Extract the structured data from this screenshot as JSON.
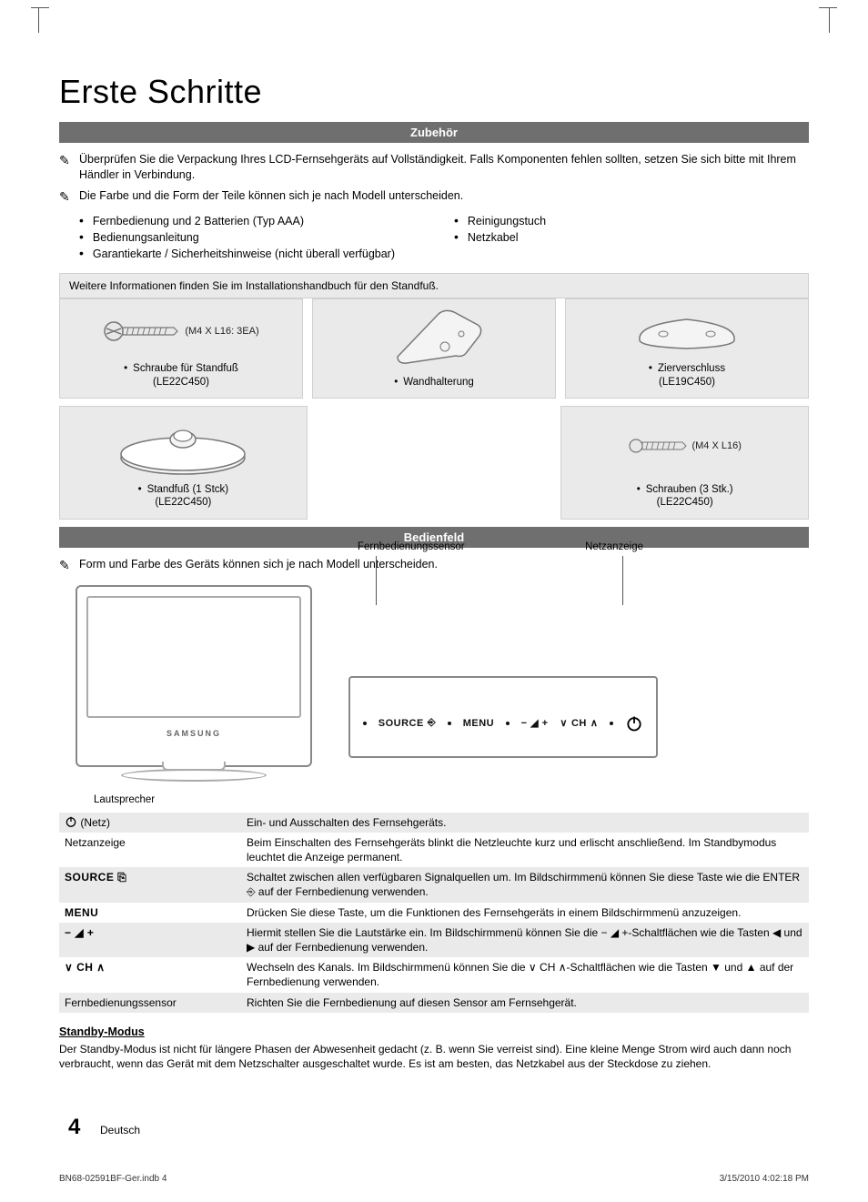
{
  "page": {
    "title": "Erste Schritte",
    "number": "4",
    "language": "Deutsch"
  },
  "footer": {
    "left": "BN68-02591BF-Ger.indb   4",
    "right": "3/15/2010   4:02:18 PM"
  },
  "sections": {
    "accessories": {
      "heading": "Zubehör",
      "note1": "Überprüfen Sie die Verpackung Ihres LCD-Fernsehgeräts auf Vollständigkeit. Falls Komponenten fehlen sollten, setzen Sie sich bitte mit Ihrem Händler in Verbindung.",
      "note2": "Die Farbe und die Form der Teile können sich je nach Modell unterscheiden.",
      "list_left": [
        "Fernbedienung und 2 Batterien (Typ AAA)",
        "Bedienungsanleitung",
        "Garantiekarte / Sicherheitshinweise (nicht überall verfügbar)"
      ],
      "list_right": [
        "Reinigungstuch",
        "Netzkabel"
      ],
      "stand_info": "Weitere Informationen finden Sie im Installationshandbuch für den Standfuß.",
      "parts_row1": [
        {
          "extra": "(M4 X L16: 3EA)",
          "label": "Schraube für Standfuß",
          "sub": "(LE22C450)"
        },
        {
          "extra": "",
          "label": "Wandhalterung",
          "sub": ""
        },
        {
          "extra": "",
          "label": "Zierverschluss",
          "sub": "(LE19C450)"
        }
      ],
      "parts_row2": [
        {
          "extra": "",
          "label": "Standfuß (1 Stck)",
          "sub": "(LE22C450)"
        },
        {
          "extra": "(M4 X L16)",
          "label": "Schrauben (3 Stk.)",
          "sub": "(LE22C450)"
        }
      ]
    },
    "controlpanel": {
      "heading": "Bedienfeld",
      "note": "Form und Farbe des Geräts können sich je nach Modell unterscheiden.",
      "tv_brand": "SAMSUNG",
      "speaker_label": "Lautsprecher",
      "sensor_label": "Fernbedienungssensor",
      "power_label": "Netzanzeige",
      "buttons": {
        "source": "SOURCE",
        "menu": "MENU",
        "ch": "CH"
      },
      "table": [
        {
          "key_icon": "power",
          "key": "(Netz)",
          "desc": "Ein- und Ausschalten des Fernsehgeräts."
        },
        {
          "key": "Netzanzeige",
          "desc": "Beim Einschalten des Fernsehgeräts blinkt die Netzleuchte kurz und erlischt anschließend. Im Standbymodus leuchtet die Anzeige permanent."
        },
        {
          "key": "SOURCE ⎘",
          "bold": true,
          "desc": "Schaltet zwischen allen verfügbaren Signalquellen um. Im Bildschirmmenü können Sie diese Taste wie die ENTER ⎆ auf der Fernbedienung verwenden."
        },
        {
          "key": "MENU",
          "bold": true,
          "desc": "Drücken Sie diese Taste, um die Funktionen des Fernsehgeräts in einem Bildschirmmenü anzuzeigen."
        },
        {
          "key": "− ◢ +",
          "bold": true,
          "desc": "Hiermit stellen Sie die Lautstärke ein. Im Bildschirmmenü können Sie die − ◢ +-Schaltflächen wie die Tasten ◀ und ▶ auf der Fernbedienung verwenden."
        },
        {
          "key": "∨ CH ∧",
          "bold": true,
          "desc": "Wechseln des Kanals. Im Bildschirmmenü können Sie die ∨ CH ∧-Schaltflächen wie die Tasten ▼ und ▲ auf der Fernbedienung verwenden."
        },
        {
          "key": "Fernbedienungssensor",
          "desc": "Richten Sie die Fernbedienung auf diesen Sensor am Fernsehgerät."
        }
      ],
      "standby_heading": "Standby-Modus",
      "standby_body": "Der Standby-Modus ist nicht für längere Phasen der Abwesenheit gedacht (z. B. wenn Sie verreist sind). Eine kleine Menge Strom wird auch dann noch verbraucht, wenn das Gerät mit dem Netzschalter ausgeschaltet wurde. Es ist am besten, das Netzkabel aus der Steckdose zu ziehen."
    }
  },
  "colors": {
    "section_bar_bg": "#6f6f6f",
    "section_bar_fg": "#ffffff",
    "grey_box": "#eaeaea",
    "border": "#d0d0d0"
  }
}
